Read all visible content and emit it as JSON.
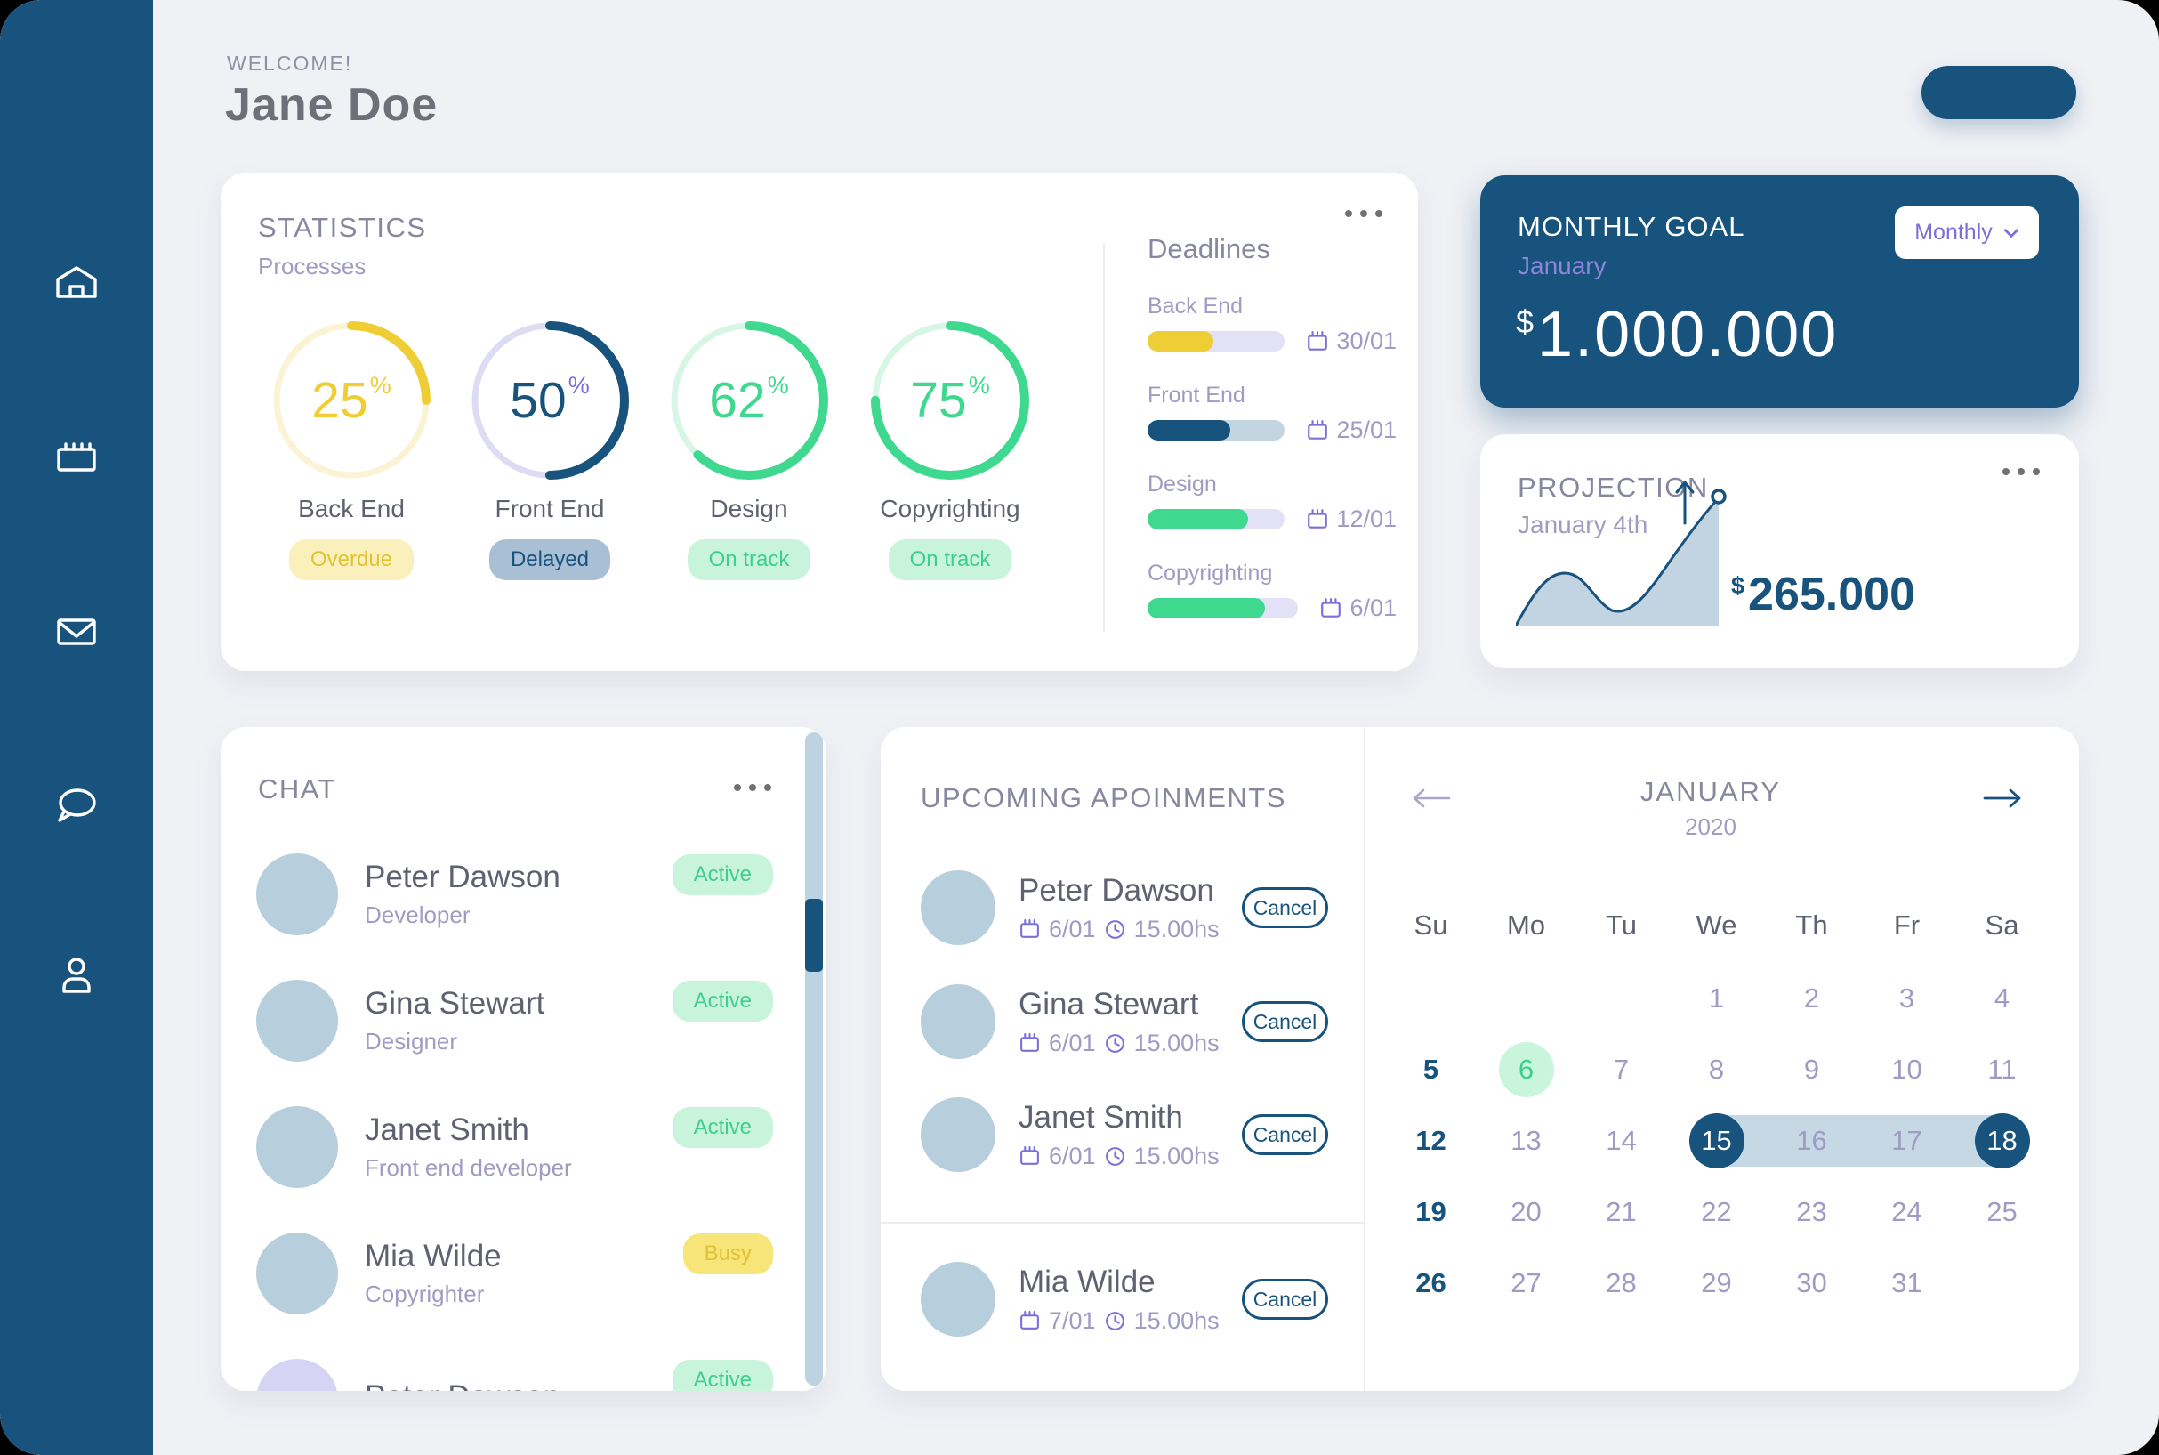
{
  "colors": {
    "primary_blue": "#17537D",
    "accent_green": "#3ED98F",
    "accent_yellow": "#EFCE35",
    "accent_purple": "#7B6FDB",
    "range_blue": "#C5D8E3",
    "avatar_blue": "#B7CEDC"
  },
  "sidebar": {
    "icons": [
      "home-icon",
      "calendar-icon",
      "mail-icon",
      "chat-icon",
      "profile-icon"
    ]
  },
  "header": {
    "welcome": "WELCOME!",
    "user_name": "Jane Doe"
  },
  "statistics": {
    "title": "STATISTICS",
    "subtitle": "Processes",
    "processes": [
      {
        "name": "Back End",
        "percent": 25,
        "symbol": "%",
        "status": "Overdue",
        "color": "#EFCE35",
        "pct_color": "#EFCE35",
        "track_color": "#FAF3D4"
      },
      {
        "name": "Front End",
        "percent": 50,
        "symbol": "%",
        "status": "Delayed",
        "color": "#17537D",
        "pct_color": "#7B6FDB",
        "track_color": "#DEDCF2"
      },
      {
        "name": "Design",
        "percent": 62,
        "symbol": "%",
        "status": "On track",
        "color": "#3ED98F",
        "pct_color": "#3ED98F",
        "track_color": "#D8F6E6"
      },
      {
        "name": "Copyrighting",
        "percent": 75,
        "symbol": "%",
        "status": "On track",
        "color": "#3ED98F",
        "pct_color": "#3ED98F",
        "track_color": "#D8F6E6"
      }
    ]
  },
  "deadlines": {
    "title": "Deadlines",
    "items": [
      {
        "name": "Back End",
        "date": "30/01",
        "percent": 48
      },
      {
        "name": "Front End",
        "date": "25/01",
        "percent": 60
      },
      {
        "name": "Design",
        "date": "12/01",
        "percent": 73
      },
      {
        "name": "Copyrighting",
        "date": "6/01",
        "percent": 78
      }
    ]
  },
  "monthly_goal": {
    "title": "MONTHLY GOAL",
    "period": "January",
    "selector_label": "Monthly",
    "currency": "$",
    "amount": "1.000.000"
  },
  "projection": {
    "title": "PROJECTION",
    "subtitle": "January 4th",
    "currency": "$",
    "amount": "265.000",
    "chart_data": {
      "type": "area",
      "x": [
        0,
        1,
        2,
        3,
        4,
        5,
        6,
        7,
        8
      ],
      "y": [
        0,
        40,
        59,
        45,
        17,
        35,
        82,
        125,
        143
      ],
      "line_color": "#17537D",
      "fill_color": "#C2D4E2",
      "annotations": [
        "up-arrow",
        "peak-marker"
      ]
    }
  },
  "chat": {
    "title": "CHAT",
    "members": [
      {
        "name": "Peter Dawson",
        "role": "Developer",
        "status": "Active"
      },
      {
        "name": "Gina Stewart",
        "role": "Designer",
        "status": "Active"
      },
      {
        "name": "Janet Smith",
        "role": "Front end developer",
        "status": "Active"
      },
      {
        "name": "Mia Wilde",
        "role": "Copyrighter",
        "status": "Busy"
      },
      {
        "name": "Peter Dawson",
        "role": "",
        "status": "Active"
      }
    ]
  },
  "appointments": {
    "title": "UPCOMING APOINMENTS",
    "cancel_label": "Cancel",
    "items": [
      {
        "name": "Peter Dawson",
        "date": "6/01",
        "time": "15.00hs"
      },
      {
        "name": "Gina Stewart",
        "date": "6/01",
        "time": "15.00hs"
      },
      {
        "name": "Janet Smith",
        "date": "6/01",
        "time": "15.00hs"
      },
      {
        "name": "Mia Wilde",
        "date": "7/01",
        "time": "15.00hs"
      }
    ]
  },
  "calendar": {
    "month": "JANUARY",
    "year": "2020",
    "day_headers": [
      "Su",
      "Mo",
      "Tu",
      "We",
      "Th",
      "Fr",
      "Sa"
    ],
    "days": [
      "",
      "",
      "",
      "1",
      "2",
      "3",
      "4",
      "5",
      "6",
      "7",
      "8",
      "9",
      "10",
      "11",
      "12",
      "13",
      "14",
      "15",
      "16",
      "17",
      "18",
      "19",
      "20",
      "21",
      "22",
      "23",
      "24",
      "25",
      "26",
      "27",
      "28",
      "29",
      "30",
      "31",
      ""
    ],
    "selected_day": 6,
    "range_start": 15,
    "range_end": 18
  }
}
